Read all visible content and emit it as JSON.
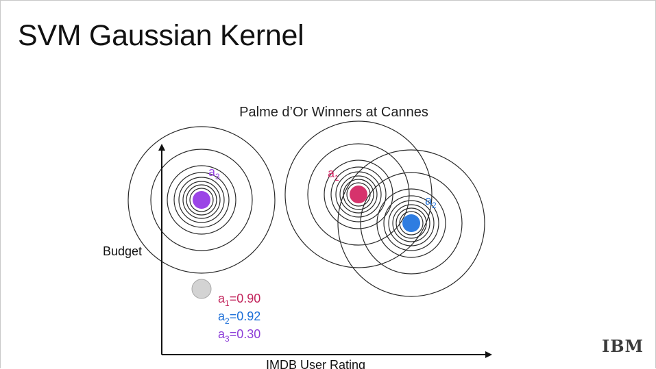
{
  "slide": {
    "title": "SVM Gaussian Kernel",
    "logo_text": "IBM"
  },
  "diagram": {
    "subtitle": "Palme d’Or Winners at Cannes",
    "y_axis_label": "Budget",
    "x_axis_label": "IMDB User Rating",
    "points": [
      {
        "id": "a1",
        "letter": "a",
        "subscript": "1",
        "color": "#d6336c",
        "similarity": "0.90"
      },
      {
        "id": "a2",
        "letter": "a",
        "subscript": "2",
        "color": "#2f7de1",
        "similarity": "0.92"
      },
      {
        "id": "a3",
        "letter": "a",
        "subscript": "3",
        "color": "#9b45e6",
        "similarity": "0.30"
      }
    ],
    "query_point_color": "#d3d3d3",
    "similarity_values": [
      {
        "letter": "a",
        "subscript": "1",
        "eq": "=",
        "value": "0.90",
        "color": "#c2255c"
      },
      {
        "letter": "a",
        "subscript": "2",
        "eq": "=",
        "value": "0.92",
        "color": "#1c6fd8"
      },
      {
        "letter": "a",
        "subscript": "3",
        "eq": "=",
        "value": "0.30",
        "color": "#8d3ed8"
      }
    ]
  }
}
